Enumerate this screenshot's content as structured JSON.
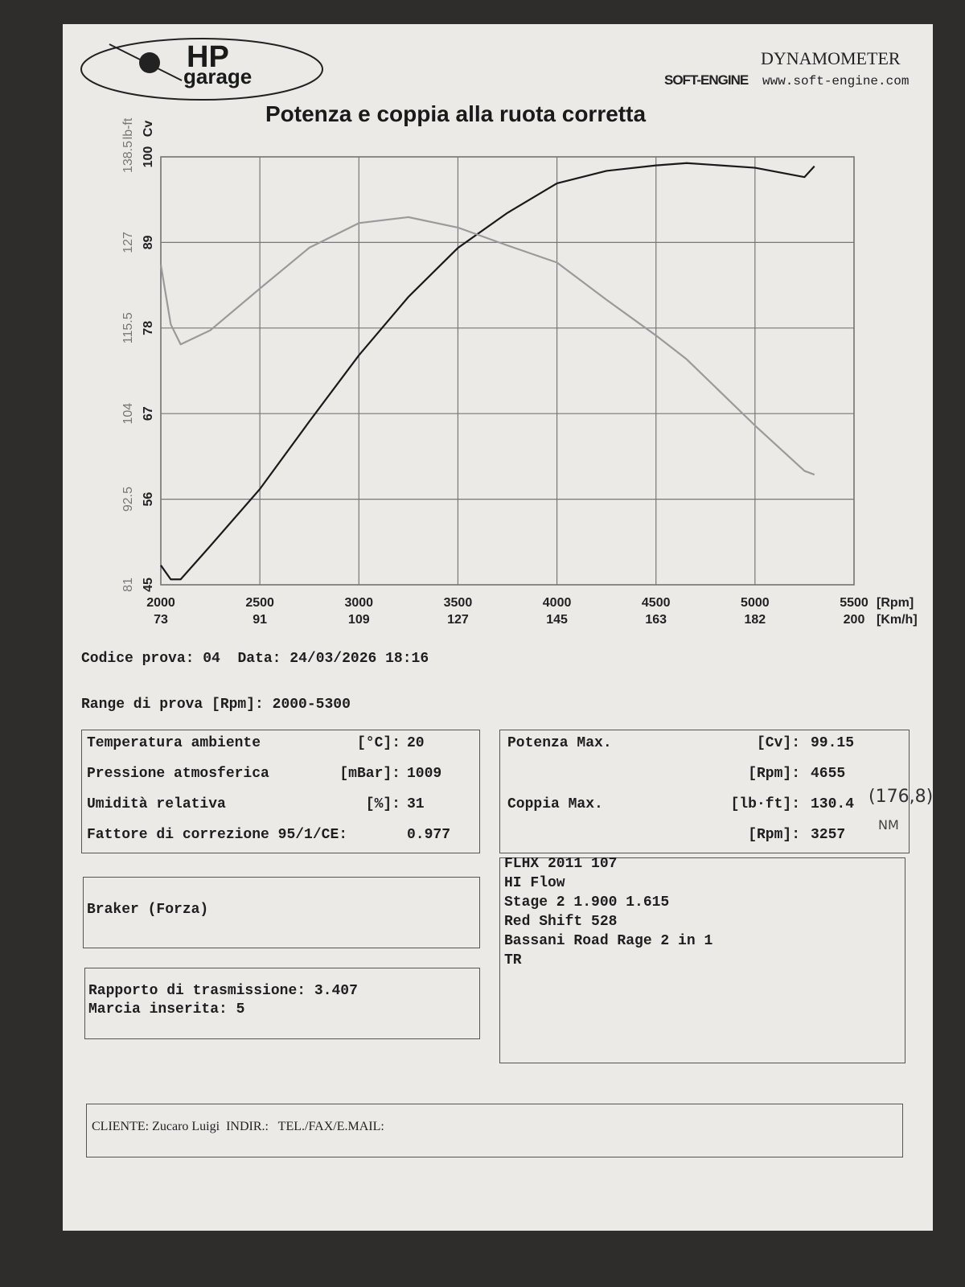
{
  "header": {
    "logo": "HP",
    "logo_sub": "garage",
    "brand": "SOFT-ENGINE",
    "brand_title": "DYNAMOMETER",
    "website": "www.soft-engine.com"
  },
  "chart_data": {
    "type": "line",
    "title": "Potenza e coppia alla ruota corretta",
    "x": [
      2000,
      2050,
      2100,
      2250,
      2500,
      2750,
      3000,
      3250,
      3500,
      3750,
      4000,
      4250,
      4500,
      4655,
      5000,
      5250,
      5300
    ],
    "series": [
      {
        "color": "#1a1a1a",
        "values": [
          47.5,
          45.7,
          45.7,
          50.0,
          57.3,
          66.0,
          74.5,
          82.0,
          88.3,
          92.8,
          96.6,
          98.2,
          98.9,
          99.2,
          98.6,
          97.4,
          98.8
        ]
      },
      {
        "color": "#9a9a9a",
        "axis": "y2",
        "values": [
          124.0,
          116.0,
          113.3,
          115.2,
          120.8,
          126.3,
          129.6,
          130.4,
          129.0,
          126.6,
          124.3,
          119.3,
          114.5,
          111.3,
          102.4,
          96.3,
          95.8
        ]
      }
    ],
    "xlim": [
      2000,
      5500
    ],
    "xticks": [
      2000,
      2500,
      3000,
      3500,
      4000,
      4500,
      5000,
      5500
    ],
    "x2_tick_labels": [
      73,
      91,
      109,
      127,
      145,
      163,
      182,
      200
    ],
    "x_label": "[Rpm]",
    "x2_label": "[Km/h]",
    "ylim": [
      45,
      100
    ],
    "yticks": [
      45,
      56,
      67,
      78,
      89,
      100
    ],
    "y_label": "Cv",
    "y2lim": [
      81,
      138.5
    ],
    "y2ticks": [
      81,
      92.5,
      104,
      115.5,
      127,
      138.5
    ],
    "y2_label": "lb-ft",
    "grid": true
  },
  "test": {
    "code_label": "Codice prova:",
    "code": "04",
    "date_label": "Data:",
    "date": "24/03/2026 18:16",
    "range_label": "Range di prova [Rpm]:",
    "range": "2000-5300"
  },
  "conditions": [
    {
      "label": "Temperatura ambiente",
      "unit": "[°C]:",
      "value": 20
    },
    {
      "label": "Pressione atmosferica",
      "unit": "[mBar]:",
      "value": 1009
    },
    {
      "label": "Umidità relativa",
      "unit": "[%]:",
      "value": 31
    },
    {
      "label": "Fattore di correzione 95/1/CE:",
      "value": 0.977
    }
  ],
  "results": [
    {
      "label": "Potenza Max.",
      "unit": "[Cv]:",
      "value": 99.15
    },
    {
      "unit": "[Rpm]:",
      "value": 4655
    },
    {
      "label": "Coppia Max.",
      "unit": "[lb·ft]:",
      "value": 130.4,
      "handwritten": "(176,8)",
      "handwritten_unit": "NM"
    },
    {
      "unit": "[Rpm]:",
      "value": 3257
    }
  ],
  "notes": [
    "FLHX 2011 107",
    "HI Flow",
    "Stage 2 1.900 1.615",
    "Red Shift 528",
    "Bassani Road Rage 2 in 1",
    "TR"
  ],
  "brake": "Braker (Forza)",
  "transmission": {
    "ratio_label": "Rapporto di trasmissione:",
    "ratio": 3.407,
    "gear_label": "Marcia inserita:",
    "gear": 5
  },
  "footer": {
    "client_label": "CLIENTE:",
    "client": "Zucaro Luigi",
    "address_label": "INDIR.:",
    "contact_label": "TEL./FAX/E.MAIL:"
  }
}
